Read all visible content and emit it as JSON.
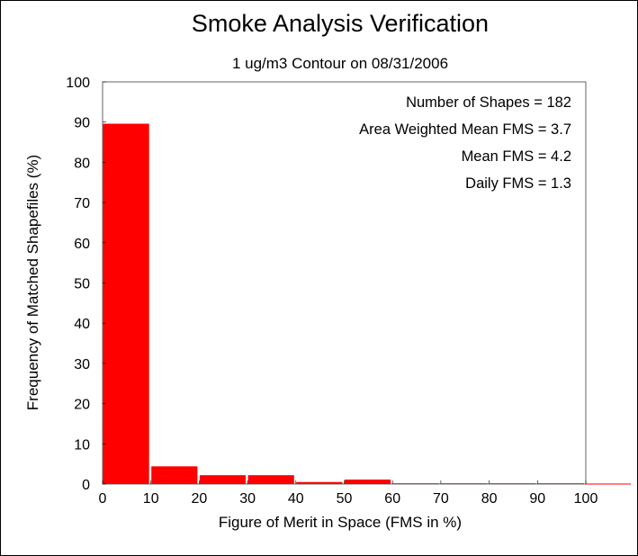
{
  "chart_data": {
    "type": "bar",
    "title": "Smoke Analysis Verification",
    "subtitle": "1 ug/m3 Contour on 08/31/2006",
    "xlabel": "Figure of Merit in Space (FMS in %)",
    "ylabel": "Frequency of Matched Shapefiles (%)",
    "xlim": [
      0,
      100
    ],
    "ylim": [
      0,
      100
    ],
    "x_ticks": [
      "0",
      "10",
      "20",
      "30",
      "40",
      "50",
      "60",
      "70",
      "80",
      "90",
      "100"
    ],
    "y_ticks": [
      "0",
      "10",
      "20",
      "30",
      "40",
      "50",
      "60",
      "70",
      "80",
      "90",
      "100"
    ],
    "bins": [
      {
        "from": 0,
        "to": 10,
        "value": 89.6
      },
      {
        "from": 10,
        "to": 20,
        "value": 4.4
      },
      {
        "from": 20,
        "to": 30,
        "value": 2.2
      },
      {
        "from": 30,
        "to": 40,
        "value": 2.2
      },
      {
        "from": 40,
        "to": 50,
        "value": 0.5
      },
      {
        "from": 50,
        "to": 60,
        "value": 1.1
      },
      {
        "from": 60,
        "to": 70,
        "value": 0
      },
      {
        "from": 70,
        "to": 80,
        "value": 0
      },
      {
        "from": 80,
        "to": 90,
        "value": 0
      },
      {
        "from": 90,
        "to": 100,
        "value": 0
      }
    ],
    "bar_color": "#ff0000",
    "grid": false,
    "stats": [
      "Number of Shapes = 182",
      "Area Weighted Mean FMS = 3.7",
      "Mean FMS = 4.2",
      "Daily FMS = 1.3"
    ]
  }
}
